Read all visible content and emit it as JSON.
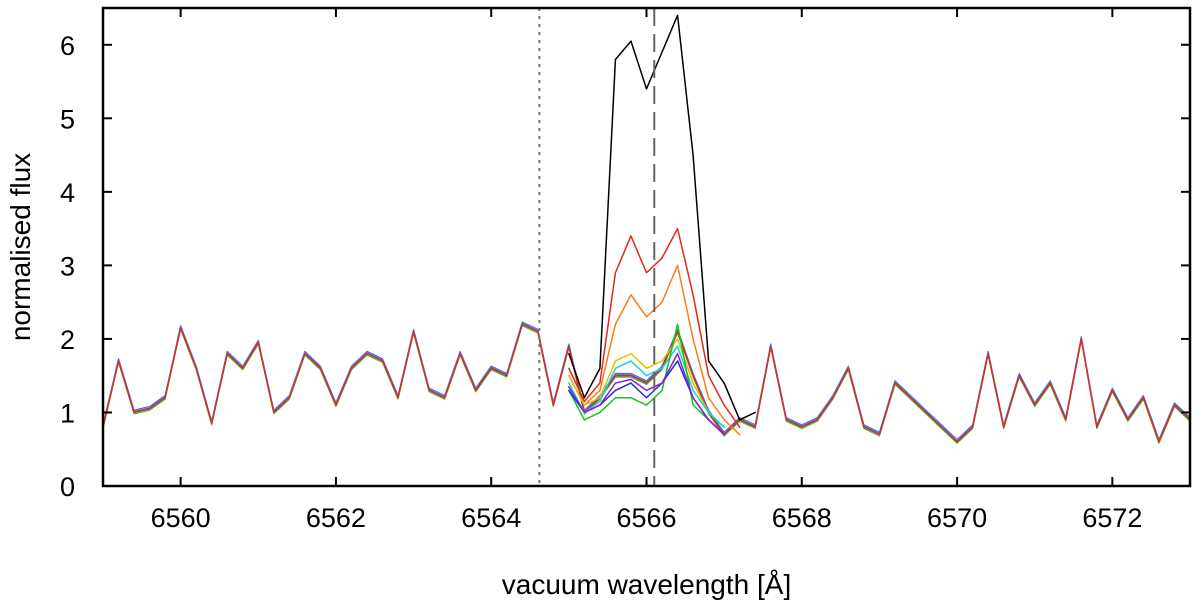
{
  "chart_data": {
    "type": "line",
    "title": "",
    "xlabel": "vacuum wavelength [Å]",
    "ylabel": "normalised flux",
    "xlim": [
      6559.0,
      6573.0
    ],
    "ylim": [
      0,
      6.5
    ],
    "xticks": [
      6560,
      6562,
      6564,
      6566,
      6568,
      6570,
      6572
    ],
    "yticks": [
      0,
      1,
      2,
      3,
      4,
      5,
      6
    ],
    "xtick_labels": [
      "6560",
      "6562",
      "6564",
      "6566",
      "6568",
      "6570",
      "6572"
    ],
    "ytick_labels": [
      "0",
      "1",
      "2",
      "3",
      "4",
      "5",
      "6"
    ],
    "grid": false,
    "legend": "none",
    "reference_lines": [
      {
        "name": "dotted-reference-line",
        "x": 6564.62,
        "style": "dotted",
        "color": "#777777"
      },
      {
        "name": "dashed-reference-line",
        "x": 6566.1,
        "style": "dashed",
        "color": "#666666"
      }
    ],
    "background_spectrum": {
      "x": [
        6559.0,
        6559.2,
        6559.4,
        6559.6,
        6559.8,
        6560.0,
        6560.2,
        6560.4,
        6560.6,
        6560.8,
        6561.0,
        6561.2,
        6561.4,
        6561.6,
        6561.8,
        6562.0,
        6562.2,
        6562.4,
        6562.6,
        6562.8,
        6563.0,
        6563.2,
        6563.4,
        6563.6,
        6563.8,
        6564.0,
        6564.2,
        6564.4,
        6564.6,
        6564.8,
        6565.0,
        6565.2,
        6565.4,
        6565.6,
        6565.8,
        6566.0,
        6566.2,
        6566.4,
        6566.6,
        6566.8,
        6567.0,
        6567.2,
        6567.4,
        6567.6,
        6567.8,
        6568.0,
        6568.2,
        6568.4,
        6568.6,
        6568.8,
        6569.0,
        6569.2,
        6569.4,
        6569.6,
        6569.8,
        6570.0,
        6570.2,
        6570.4,
        6570.6,
        6570.8,
        6571.0,
        6571.2,
        6571.4,
        6571.6,
        6571.8,
        6572.0,
        6572.2,
        6572.4,
        6572.6,
        6572.8,
        6573.0
      ],
      "y": [
        0.8,
        1.7,
        1.0,
        1.05,
        1.2,
        2.15,
        1.6,
        0.85,
        1.8,
        1.6,
        1.95,
        1.0,
        1.2,
        1.8,
        1.6,
        1.1,
        1.6,
        1.8,
        1.7,
        1.2,
        2.1,
        1.3,
        1.2,
        1.8,
        1.3,
        1.6,
        1.5,
        2.2,
        2.1,
        1.1,
        1.9,
        1.0,
        1.2,
        1.5,
        1.5,
        1.4,
        1.6,
        2.1,
        1.5,
        1.0,
        0.7,
        0.9,
        0.8,
        1.9,
        0.9,
        0.8,
        0.9,
        1.2,
        1.6,
        0.8,
        0.7,
        1.4,
        1.2,
        1.0,
        0.8,
        0.6,
        0.8,
        1.8,
        0.8,
        1.5,
        1.1,
        1.4,
        0.9,
        2.0,
        0.8,
        1.3,
        0.9,
        1.2,
        0.6,
        1.1,
        0.9
      ]
    },
    "series": [
      {
        "name": "black",
        "color": "#000000",
        "x": [
          6565.0,
          6565.2,
          6565.4,
          6565.6,
          6565.8,
          6566.0,
          6566.2,
          6566.4,
          6566.6,
          6566.8,
          6567.0,
          6567.2,
          6567.4
        ],
        "y": [
          1.8,
          1.2,
          1.6,
          5.8,
          6.05,
          5.4,
          5.9,
          6.4,
          4.5,
          1.7,
          1.4,
          0.9,
          1.0
        ]
      },
      {
        "name": "red",
        "color": "#e8261c",
        "x": [
          6565.0,
          6565.2,
          6565.4,
          6565.6,
          6565.8,
          6566.0,
          6566.2,
          6566.4,
          6566.6,
          6566.8,
          6567.0,
          6567.2
        ],
        "y": [
          1.6,
          1.15,
          1.4,
          2.9,
          3.4,
          2.9,
          3.1,
          3.5,
          2.6,
          1.5,
          1.1,
          0.8
        ]
      },
      {
        "name": "orange",
        "color": "#ff7a1a",
        "x": [
          6565.0,
          6565.2,
          6565.4,
          6565.6,
          6565.8,
          6566.0,
          6566.2,
          6566.4,
          6566.6,
          6566.8,
          6567.0,
          6567.2
        ],
        "y": [
          1.5,
          1.1,
          1.3,
          2.2,
          2.6,
          2.3,
          2.5,
          3.0,
          2.0,
          1.2,
          0.9,
          0.7
        ]
      },
      {
        "name": "yellow",
        "color": "#ddc400",
        "x": [
          6565.0,
          6565.2,
          6565.4,
          6565.6,
          6565.8,
          6566.0,
          6566.2,
          6566.4,
          6566.6,
          6566.8,
          6567.0
        ],
        "y": [
          1.5,
          1.1,
          1.2,
          1.7,
          1.8,
          1.6,
          1.7,
          2.0,
          1.4,
          1.0,
          0.8
        ]
      },
      {
        "name": "cyan",
        "color": "#19d3e0",
        "x": [
          6565.0,
          6565.2,
          6565.4,
          6565.6,
          6565.8,
          6566.0,
          6566.2,
          6566.4,
          6566.6,
          6566.8,
          6567.0
        ],
        "y": [
          1.4,
          1.0,
          1.15,
          1.6,
          1.7,
          1.5,
          1.6,
          1.9,
          1.3,
          1.0,
          0.8
        ]
      },
      {
        "name": "green",
        "color": "#17c21b",
        "x": [
          6565.0,
          6565.2,
          6565.4,
          6565.6,
          6565.8,
          6566.0,
          6566.2,
          6566.4,
          6566.6,
          6566.8,
          6567.0
        ],
        "y": [
          1.3,
          0.9,
          1.0,
          1.2,
          1.2,
          1.1,
          1.3,
          2.2,
          1.1,
          0.9,
          0.7
        ]
      },
      {
        "name": "blue",
        "color": "#1b2de0",
        "x": [
          6565.0,
          6565.2,
          6565.4,
          6565.6,
          6565.8,
          6566.0,
          6566.2,
          6566.4,
          6566.6,
          6566.8,
          6567.0
        ],
        "y": [
          1.3,
          1.0,
          1.1,
          1.3,
          1.4,
          1.2,
          1.4,
          1.7,
          1.2,
          0.9,
          0.7
        ]
      },
      {
        "name": "purple",
        "color": "#8b1fd6",
        "x": [
          6565.0,
          6565.2,
          6565.4,
          6565.6,
          6565.8,
          6566.0,
          6566.2,
          6566.4,
          6566.6,
          6566.8,
          6567.0
        ],
        "y": [
          1.35,
          1.0,
          1.1,
          1.4,
          1.45,
          1.3,
          1.4,
          1.8,
          1.2,
          0.9,
          0.7
        ]
      }
    ]
  }
}
